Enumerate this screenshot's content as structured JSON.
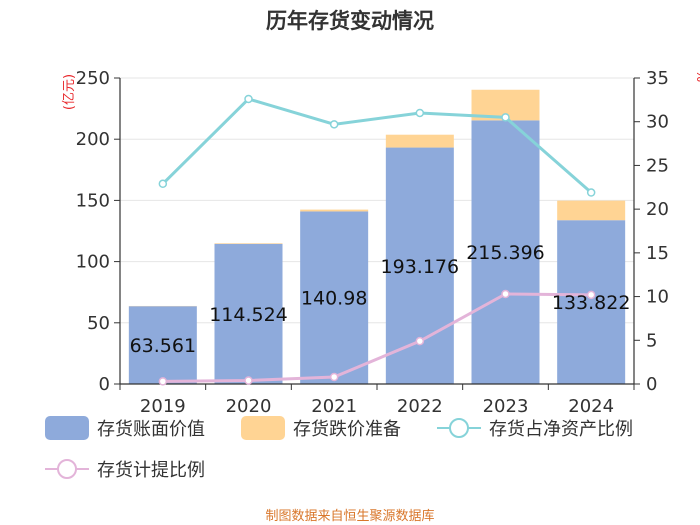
{
  "title": "历年存货变动情况",
  "footer": "制图数据来自恒生聚源数据库",
  "colors": {
    "book_value": "#8eaadb",
    "impairment": "#ffd494",
    "share_line": "#86d3d9",
    "provision_line": "#e3b4d9",
    "axis_unit": "#e8272b",
    "footer": "#d9772b"
  },
  "chart_data": {
    "type": "bar",
    "title": "历年存货变动情况",
    "categories": [
      "2019",
      "2020",
      "2021",
      "2022",
      "2023",
      "2024"
    ],
    "y_left": {
      "unit_label": "(亿元)",
      "ylim": [
        0,
        250
      ],
      "ticks": [
        "0",
        "50",
        "100",
        "150",
        "200",
        "250"
      ]
    },
    "y_right": {
      "unit_label": "%",
      "ylim": [
        0,
        35
      ],
      "ticks": [
        "0",
        "5",
        "10",
        "15",
        "20",
        "25",
        "30",
        "35"
      ]
    },
    "series": [
      {
        "name": "存货账面价值",
        "type": "bar",
        "stack": "inventory",
        "axis": "left",
        "values": [
          63.561,
          114.524,
          140.98,
          193.176,
          215.396,
          133.822
        ],
        "labels": [
          "63.561",
          "114.524",
          "140.98",
          "193.176",
          "215.396",
          "133.822"
        ]
      },
      {
        "name": "存货跌价准备",
        "type": "bar",
        "stack": "inventory",
        "axis": "left",
        "values": [
          0.2,
          0.5,
          1.5,
          10.5,
          25.0,
          16.0
        ]
      },
      {
        "name": "存货占净资产比例",
        "type": "line",
        "axis": "right",
        "values": [
          22.9,
          32.6,
          29.7,
          31.0,
          30.5,
          21.9
        ]
      },
      {
        "name": "存货计提比例",
        "type": "line",
        "axis": "right",
        "values": [
          0.3,
          0.4,
          0.8,
          4.9,
          10.3,
          10.2
        ]
      }
    ],
    "grid": true,
    "legend_position": "bottom"
  }
}
